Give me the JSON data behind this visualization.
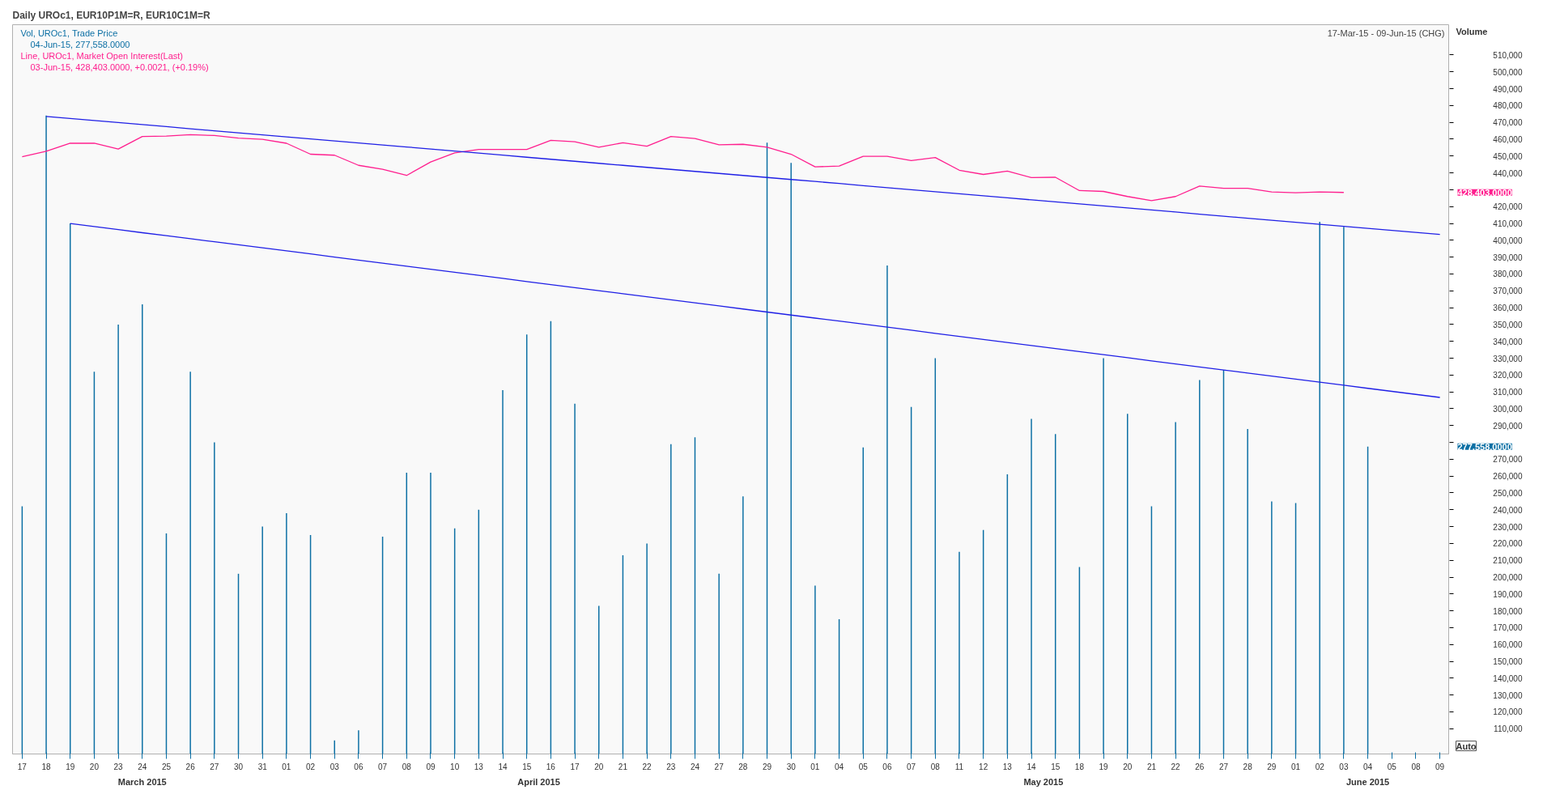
{
  "chart_data": {
    "type": "bar",
    "title": "Daily UROc1, EUR10P1M=R, EUR10C1M=R",
    "subtitle": "17-Mar-15 - 09-Jun-15 (CHG)",
    "ylabel": "Volume",
    "categories": [
      "17",
      "18",
      "19",
      "20",
      "23",
      "24",
      "25",
      "26",
      "27",
      "30",
      "31",
      "01",
      "02",
      "03",
      "06",
      "07",
      "08",
      "09",
      "10",
      "13",
      "14",
      "15",
      "16",
      "17",
      "20",
      "21",
      "22",
      "23",
      "24",
      "27",
      "28",
      "29",
      "30",
      "01",
      "04",
      "05",
      "06",
      "07",
      "08",
      "11",
      "12",
      "13",
      "14",
      "15",
      "18",
      "19",
      "20",
      "21",
      "22",
      "26",
      "27",
      "28",
      "29",
      "01",
      "02",
      "03",
      "04",
      "05",
      "08",
      "09"
    ],
    "series": [
      {
        "name": "Vol, UROc1, Trade Price",
        "color": "#0b6fa4",
        "values": [
          242000,
          474000,
          410000,
          322000,
          350000,
          362000,
          226000,
          322000,
          280000,
          202000,
          230000,
          238000,
          225000,
          103000,
          109000,
          224000,
          262000,
          262000,
          229000,
          240000,
          311000,
          344000,
          352000,
          303000,
          183000,
          213000,
          220000,
          279000,
          283000,
          202000,
          248000,
          458000,
          446000,
          195000,
          175000,
          277000,
          385000,
          301000,
          330000,
          215000,
          228000,
          261000,
          294000,
          285000,
          206000,
          330000,
          297000,
          242000,
          292000,
          317000,
          323000,
          288000,
          245000,
          244000,
          411000,
          408000,
          277558,
          null,
          null,
          null
        ]
      },
      {
        "name": "Line, UROc1, Market Open Interest(Last)",
        "type": "line",
        "color": "#ff1f8e",
        "values": [
          449600,
          452800,
          457600,
          457600,
          454200,
          461600,
          461900,
          462700,
          462200,
          460700,
          459900,
          457600,
          451100,
          450500,
          444500,
          442200,
          438500,
          446500,
          451900,
          453900,
          453900,
          453900,
          459300,
          458500,
          455300,
          457900,
          455900,
          461600,
          460400,
          456700,
          457000,
          455300,
          451100,
          443600,
          444100,
          449800,
          449800,
          447300,
          449100,
          441600,
          439100,
          441100,
          437200,
          437400,
          429500,
          429000,
          426000,
          423500,
          426000,
          432200,
          430900,
          430900,
          428700,
          428200,
          428700,
          428403,
          null,
          null,
          null,
          null
        ]
      },
      {
        "type": "line",
        "color": "#1f1fe6",
        "values": [
          null,
          473500,
          472300,
          471100,
          469900,
          468700,
          467500,
          466200,
          465000,
          463800,
          462600,
          461400,
          460200,
          459000,
          457800,
          456600,
          455400,
          454200,
          453000,
          451800,
          450600,
          449300,
          448100,
          446900,
          445700,
          444500,
          443300,
          442100,
          440900,
          439700,
          438500,
          437300,
          436100,
          434900,
          433700,
          432400,
          431200,
          430000,
          428800,
          427600,
          426400,
          425200,
          424000,
          422800,
          421600,
          420400,
          419200,
          418000,
          416800,
          415500,
          414300,
          413100,
          411900,
          410700,
          409500,
          408300,
          407100,
          405900,
          404700,
          403500
        ]
      },
      {
        "type": "line",
        "color": "#1f1fe6",
        "values": [
          null,
          null,
          410000,
          408200,
          406400,
          404500,
          402700,
          400900,
          399100,
          397300,
          395500,
          393700,
          391900,
          390000,
          388200,
          386400,
          384600,
          382800,
          381000,
          379200,
          377400,
          375500,
          373700,
          371900,
          370100,
          368300,
          366500,
          364700,
          362900,
          361100,
          359200,
          357400,
          355600,
          353800,
          352000,
          350200,
          348400,
          346600,
          344700,
          342900,
          341100,
          339300,
          337500,
          335700,
          333900,
          332100,
          330300,
          328400,
          326600,
          324800,
          323000,
          321200,
          319400,
          317600,
          315800,
          314000,
          312100,
          310300,
          308500,
          306700
        ]
      }
    ],
    "ylim": [
      95000,
      528000
    ],
    "yticks": [
      {
        "value": 110000,
        "label": "110,000"
      },
      {
        "value": 120000,
        "label": "120,000"
      },
      {
        "value": 130000,
        "label": "130,000"
      },
      {
        "value": 140000,
        "label": "140,000"
      },
      {
        "value": 150000,
        "label": "150,000"
      },
      {
        "value": 160000,
        "label": "160,000"
      },
      {
        "value": 170000,
        "label": "170,000"
      },
      {
        "value": 180000,
        "label": "180,000"
      },
      {
        "value": 190000,
        "label": "190,000"
      },
      {
        "value": 200000,
        "label": "200,000"
      },
      {
        "value": 210000,
        "label": "210,000"
      },
      {
        "value": 220000,
        "label": "220,000"
      },
      {
        "value": 230000,
        "label": "230,000"
      },
      {
        "value": 240000,
        "label": "240,000"
      },
      {
        "value": 250000,
        "label": "250,000"
      },
      {
        "value": 260000,
        "label": "260,000"
      },
      {
        "value": 270000,
        "label": "270,000"
      },
      {
        "value": 280000,
        "label": null
      },
      {
        "value": 290000,
        "label": "290,000"
      },
      {
        "value": 300000,
        "label": "300,000"
      },
      {
        "value": 310000,
        "label": "310,000"
      },
      {
        "value": 320000,
        "label": "320,000"
      },
      {
        "value": 330000,
        "label": "330,000"
      },
      {
        "value": 340000,
        "label": "340,000"
      },
      {
        "value": 350000,
        "label": "350,000"
      },
      {
        "value": 360000,
        "label": "360,000"
      },
      {
        "value": 370000,
        "label": "370,000"
      },
      {
        "value": 380000,
        "label": "380,000"
      },
      {
        "value": 390000,
        "label": "390,000"
      },
      {
        "value": 400000,
        "label": "400,000"
      },
      {
        "value": 410000,
        "label": "410,000"
      },
      {
        "value": 420000,
        "label": "420,000"
      },
      {
        "value": 430000,
        "label": null
      },
      {
        "value": 440000,
        "label": "440,000"
      },
      {
        "value": 450000,
        "label": "450,000"
      },
      {
        "value": 460000,
        "label": "460,000"
      },
      {
        "value": 470000,
        "label": "470,000"
      },
      {
        "value": 480000,
        "label": "480,000"
      },
      {
        "value": 490000,
        "label": "490,000"
      },
      {
        "value": 500000,
        "label": "500,000"
      },
      {
        "value": 510000,
        "label": "510,000"
      }
    ],
    "annotations": [
      "04-Jun-15, 277,558.0000",
      "03-Jun-15, 428,403.0000, +0.0021, (+0.19%)",
      "March 2015",
      "April 2015",
      "May 2015",
      "June 2015",
      "Auto",
      "277,558.0000",
      "428,403.0000"
    ],
    "legend": "top left",
    "grid": false
  }
}
